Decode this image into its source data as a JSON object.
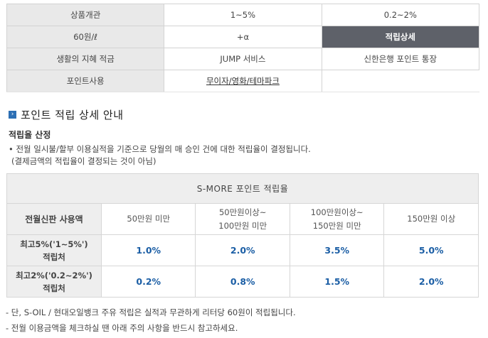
{
  "top_table": {
    "rows": [
      [
        "상품개관",
        "1~5%",
        "0.2~2%"
      ],
      [
        "60원/ℓ",
        "+α",
        "적립상세"
      ],
      [
        "생활의 지혜 적금",
        "JUMP 서비스",
        "신한은행 포인트 통장"
      ],
      [
        "포인트사용",
        "무이자/영화/테마파크",
        ""
      ]
    ]
  },
  "section": {
    "icon": "arrow-right-square-icon",
    "title": "포인트 적립 상세 안내",
    "sub_title": "적립율 산정",
    "desc1": "• 전월 일시불/할부 이용실적을 기준으로 당월의 매 승인 건에 대한 적립율이 결정됩니다.",
    "desc2": "(결제금액의 적립율이 결정되는 것이 아님)"
  },
  "rate_table": {
    "caption": "S-MORE 포인트 적립율",
    "header_left": "전월신판 사용액",
    "headers": [
      "50만원 미만",
      "50만원이상~",
      "100만원 미만",
      "100만원이상~",
      "150만원 미만",
      "150만원 이상"
    ],
    "rows": [
      {
        "label1": "최고5%('1~5%')",
        "label2": "적립처",
        "values": [
          "1.0%",
          "2.0%",
          "3.5%",
          "5.0%"
        ]
      },
      {
        "label1": "최고2%('0.2~2%')",
        "label2": "적립처",
        "values": [
          "0.2%",
          "0.8%",
          "1.5%",
          "2.0%"
        ]
      }
    ]
  },
  "notes": {
    "note1": "- 단, S-OIL / 현대오일뱅크 주유 적립은 실적과 무관하게 리터당 60원이 적립됩니다.",
    "note2": "- 전월 이용금액을 체크하실 땐 아래 주의 사항을 반드시 참고하세요."
  },
  "colors": {
    "selected_tab_bg": "#5e6169",
    "value_blue": "#1b5ea5",
    "icon_blue": "#2c6fb4"
  }
}
